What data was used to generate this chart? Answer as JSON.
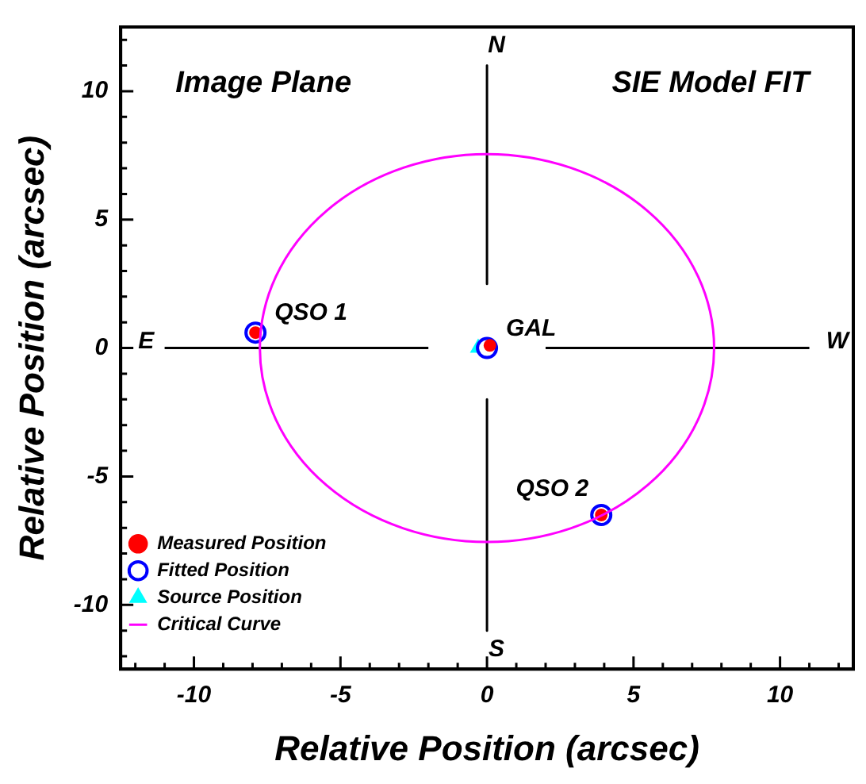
{
  "chart_data": {
    "type": "scatter",
    "xlabel": "Relative Position (arcsec)",
    "ylabel": "Relative Position (arcsec)",
    "xlim": [
      -12.5,
      12.5
    ],
    "ylim": [
      -12.5,
      12.5
    ],
    "xticks": [
      {
        "value": -12,
        "label": null
      },
      {
        "value": -11,
        "label": null
      },
      -10,
      {
        "value": -9,
        "label": null
      },
      {
        "value": -8,
        "label": null
      },
      {
        "value": -7,
        "label": null
      },
      {
        "value": -6,
        "label": null
      },
      -5,
      {
        "value": -4,
        "label": null
      },
      {
        "value": -3,
        "label": null
      },
      {
        "value": -2,
        "label": null
      },
      {
        "value": -1,
        "label": null
      },
      0,
      {
        "value": 1,
        "label": null
      },
      {
        "value": 2,
        "label": null
      },
      {
        "value": 3,
        "label": null
      },
      {
        "value": 4,
        "label": null
      },
      5,
      {
        "value": 6,
        "label": null
      },
      {
        "value": 7,
        "label": null
      },
      {
        "value": 8,
        "label": null
      },
      {
        "value": 9,
        "label": null
      },
      10,
      {
        "value": 11,
        "label": null
      },
      {
        "value": 12,
        "label": null
      }
    ],
    "yticks": [
      {
        "value": -12,
        "label": null
      },
      {
        "value": -11,
        "label": null
      },
      -10,
      {
        "value": -9,
        "label": null
      },
      {
        "value": -8,
        "label": null
      },
      {
        "value": -7,
        "label": null
      },
      {
        "value": -6,
        "label": null
      },
      -5,
      {
        "value": -4,
        "label": null
      },
      {
        "value": -3,
        "label": null
      },
      {
        "value": -2,
        "label": null
      },
      {
        "value": -1,
        "label": null
      },
      0,
      {
        "value": 1,
        "label": null
      },
      {
        "value": 2,
        "label": null
      },
      {
        "value": 3,
        "label": null
      },
      {
        "value": 4,
        "label": null
      },
      5,
      {
        "value": 6,
        "label": null
      },
      {
        "value": 7,
        "label": null
      },
      {
        "value": 8,
        "label": null
      },
      {
        "value": 9,
        "label": null
      },
      10,
      {
        "value": 11,
        "label": null
      },
      {
        "value": 12,
        "label": null
      }
    ],
    "legend": "bottom left",
    "series": [
      {
        "name": "Measured Position",
        "color": "#ff0000",
        "marker": "circle",
        "x": [
          -7.9,
          0.1,
          3.9
        ],
        "values": [
          0.6,
          0.1,
          -6.5
        ]
      },
      {
        "name": "Fitted Position",
        "color": "#0000ff",
        "marker": "circle",
        "x": [
          -7.9,
          0,
          3.9
        ],
        "values": [
          0.6,
          0,
          -6.5
        ]
      },
      {
        "name": "Source Position",
        "color": "#00ffff",
        "marker": "triangle",
        "x": [
          -0.3
        ],
        "values": [
          0
        ]
      },
      {
        "type": "line",
        "color": "#000000",
        "marker": "none",
        "x": [
          0,
          0
        ],
        "values": [
          11,
          2.5
        ]
      },
      {
        "type": "line",
        "color": "#000000",
        "marker": "none",
        "x": [
          0,
          0
        ],
        "values": [
          -2,
          -11
        ]
      },
      {
        "type": "line",
        "color": "#000000",
        "marker": "none",
        "x": [
          -11,
          -2
        ],
        "values": [
          0,
          0
        ]
      },
      {
        "type": "line",
        "color": "#000000",
        "marker": "none",
        "x": [
          2,
          11
        ],
        "values": [
          0,
          0
        ]
      }
    ],
    "annotations": [
      {
        "text": "QSO 1",
        "x": -7.9,
        "y": 0.6
      },
      {
        "text": "GAL",
        "x": 0,
        "y": 0
      },
      {
        "text": "QSO 2",
        "x": 3.9,
        "y": -6.5
      },
      "N",
      "S",
      "E",
      "W",
      "Image Plane",
      "SIE Model FIT",
      "Critical Curve"
    ]
  }
}
